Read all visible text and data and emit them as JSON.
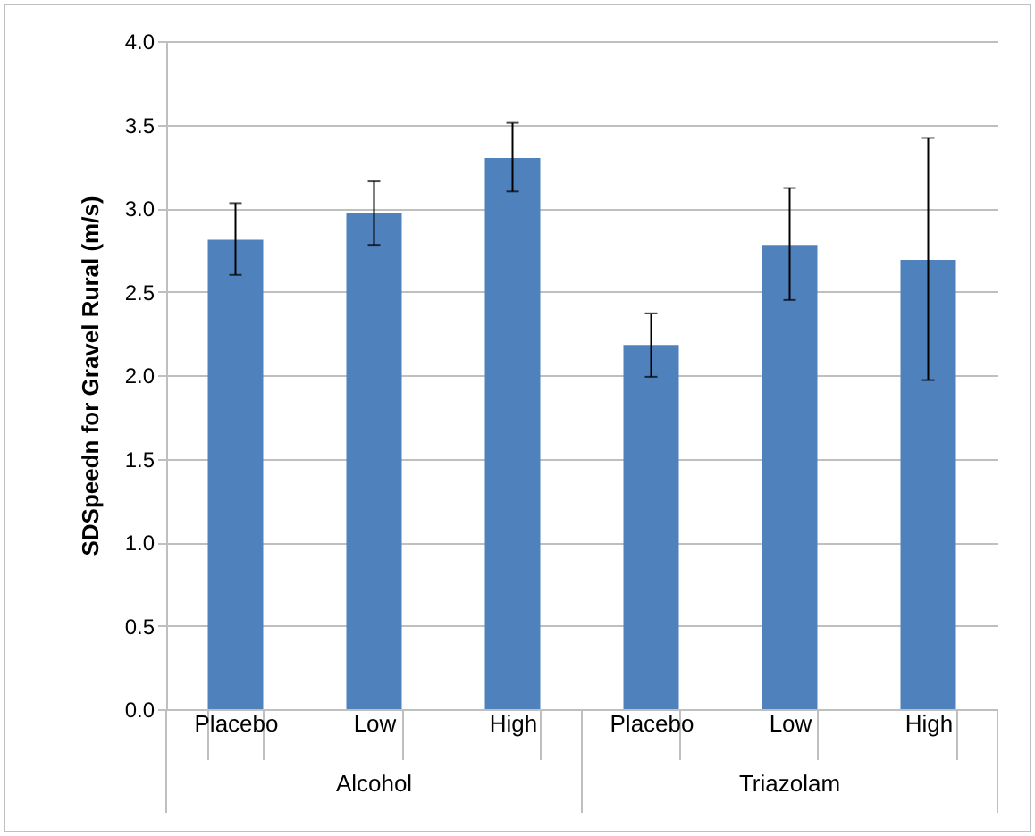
{
  "chart_data": {
    "type": "bar",
    "ylabel": "SDSpeedn for Gravel Rural (m/s)",
    "categories": [
      "Placebo",
      "Low",
      "High",
      "Placebo",
      "Low",
      "High"
    ],
    "values": [
      2.81,
      2.97,
      3.3,
      2.18,
      2.78,
      2.69
    ],
    "errors": [
      [
        2.6,
        3.03
      ],
      [
        2.78,
        3.16
      ],
      [
        3.1,
        3.51
      ],
      [
        1.99,
        2.37
      ],
      [
        2.45,
        3.12
      ],
      [
        1.97,
        3.42
      ]
    ],
    "color": "#4f81bd",
    "ylim": [
      0,
      4
    ],
    "yticks": [
      {
        "value": 0,
        "label": "0.0"
      },
      {
        "value": 0.5,
        "label": "0.5"
      },
      {
        "value": 1,
        "label": "1.0"
      },
      {
        "value": 1.5,
        "label": "1.5"
      },
      {
        "value": 2,
        "label": "2.0"
      },
      {
        "value": 2.5,
        "label": "2.5"
      },
      {
        "value": 3,
        "label": "3.0"
      },
      {
        "value": 3.5,
        "label": "3.5"
      },
      {
        "value": 4,
        "label": "4.0"
      }
    ],
    "grid": "y",
    "annotations": [
      "Alcohol",
      "Triazolam"
    ]
  }
}
